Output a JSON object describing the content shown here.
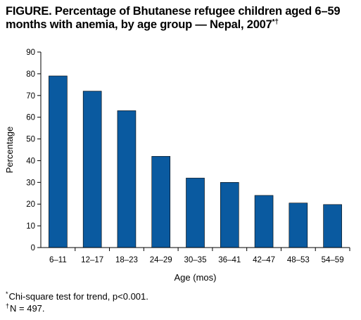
{
  "figure": {
    "title": "FIGURE. Percentage of Bhutanese refugee children aged 6–59\nmonths with anemia, by age group — Nepal, 2007",
    "title_marks": "*†"
  },
  "chart_data": {
    "type": "bar",
    "title": "",
    "xlabel": "Age (mos)",
    "ylabel": "Percentage",
    "ylim": [
      0,
      90
    ],
    "yticks": [
      0,
      10,
      20,
      30,
      40,
      50,
      60,
      70,
      80,
      90
    ],
    "categories": [
      "6–11",
      "12–17",
      "18–23",
      "24–29",
      "30–35",
      "36–41",
      "42–47",
      "48–53",
      "54–59"
    ],
    "values": [
      79,
      72,
      63,
      42,
      32,
      30,
      24,
      20.5,
      19.8
    ],
    "bar_color": "#0a5aa0",
    "grid": false,
    "legend": "none"
  },
  "footnotes": [
    {
      "mark": "*",
      "text": "Chi-square test for trend, p<0.001."
    },
    {
      "mark": "†",
      "text": "N = 497."
    }
  ]
}
